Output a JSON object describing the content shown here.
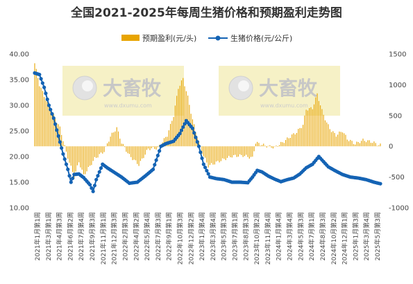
{
  "title": "全国2021-2025年每周生猪价格和预期盈利走势图",
  "watermark": {
    "brand": "大畜牧",
    "url": "www.dxumu.com"
  },
  "colors": {
    "bar": "#e8a400",
    "line": "#1463b4",
    "watermark_bg": "#f6f1c6"
  },
  "chart_data": {
    "type": "bar+line",
    "title": "全国2021-2025年每周生猪价格和预期盈利走势图",
    "legend": [
      "预期盈利(元/头)",
      "生猪价格(元/公斤)"
    ],
    "legend_position": "top-right",
    "y_left": {
      "min": 10,
      "max": 40,
      "ticks": [
        "10.00",
        "15.00",
        "20.00",
        "25.00",
        "30.00",
        "35.00",
        "40.00"
      ]
    },
    "y_right": {
      "min": -1000,
      "max": 1500,
      "ticks": [
        "-1000",
        "-500",
        "0",
        "500",
        "1000",
        "1500"
      ]
    },
    "x_labels": [
      "2021年1月第1周",
      "2021年3月第1周",
      "2021年4月第3周",
      "2021年6月第2周",
      "2021年7月第4周",
      "2021年9月第3周",
      "2021年11月第1周",
      "2021年12月第3周",
      "2022年2月第3周",
      "2022年4月第2周",
      "2022年5月第4周",
      "2022年7月第3周",
      "2022年9月第1周",
      "2022年10月第3周",
      "2022年12月第2周",
      "2023年1月第4周",
      "2023年3月第4周",
      "2023年5月第3周",
      "2023年7月第1周",
      "2023年8月第3周",
      "2023年10月第2周",
      "2023年11月第4周",
      "2024年1月第4周",
      "2024年3月第4周",
      "2024年5月第3周",
      "2024年7月第1周",
      "2024年8月第3周",
      "2024年10月第2周",
      "2024年12月第1周",
      "2025年1月第3周",
      "2025年3月第4周",
      "2025年5月第3周"
    ],
    "series": [
      {
        "name": "预期盈利(元/头)",
        "axis": "right",
        "type": "bar",
        "anchors": [
          [
            0,
            1350
          ],
          [
            3,
            1000
          ],
          [
            8,
            700
          ],
          [
            12,
            500
          ],
          [
            16,
            300
          ],
          [
            20,
            -100
          ],
          [
            25,
            -500
          ],
          [
            28,
            -250
          ],
          [
            31,
            -470
          ],
          [
            34,
            -360
          ],
          [
            38,
            -200
          ],
          [
            44,
            -80
          ],
          [
            48,
            160
          ],
          [
            52,
            300
          ],
          [
            55,
            60
          ],
          [
            60,
            -150
          ],
          [
            66,
            -300
          ],
          [
            72,
            -40
          ],
          [
            78,
            -30
          ],
          [
            84,
            180
          ],
          [
            88,
            500
          ],
          [
            91,
            950
          ],
          [
            94,
            1100
          ],
          [
            97,
            800
          ],
          [
            100,
            430
          ],
          [
            103,
            150
          ],
          [
            106,
            -100
          ],
          [
            110,
            -320
          ],
          [
            118,
            -230
          ],
          [
            125,
            -160
          ],
          [
            132,
            -150
          ],
          [
            138,
            -190
          ],
          [
            140,
            60
          ],
          [
            146,
            10
          ],
          [
            152,
            -20
          ],
          [
            158,
            80
          ],
          [
            162,
            160
          ],
          [
            166,
            230
          ],
          [
            170,
            350
          ],
          [
            172,
            600
          ],
          [
            176,
            620
          ],
          [
            179,
            850
          ],
          [
            182,
            580
          ],
          [
            185,
            380
          ],
          [
            188,
            250
          ],
          [
            191,
            180
          ],
          [
            195,
            250
          ],
          [
            198,
            120
          ],
          [
            203,
            40
          ],
          [
            208,
            100
          ],
          [
            214,
            70
          ],
          [
            218,
            20
          ]
        ]
      },
      {
        "name": "生猪价格(元/公斤)",
        "axis": "left",
        "type": "line",
        "anchors": [
          [
            0,
            36.3
          ],
          [
            3,
            36.0
          ],
          [
            6,
            33.5
          ],
          [
            9,
            30.0
          ],
          [
            12,
            27.5
          ],
          [
            15,
            24.0
          ],
          [
            18,
            20.5
          ],
          [
            21,
            17.5
          ],
          [
            23,
            15.0
          ],
          [
            25,
            16.5
          ],
          [
            28,
            16.6
          ],
          [
            31,
            15.9
          ],
          [
            35,
            14.5
          ],
          [
            37,
            13.2
          ],
          [
            39,
            15.5
          ],
          [
            43,
            18.5
          ],
          [
            46,
            17.8
          ],
          [
            50,
            17.0
          ],
          [
            55,
            16.0
          ],
          [
            60,
            14.8
          ],
          [
            65,
            15.0
          ],
          [
            70,
            16.2
          ],
          [
            75,
            17.5
          ],
          [
            80,
            22.0
          ],
          [
            83,
            22.5
          ],
          [
            88,
            23.0
          ],
          [
            92,
            24.5
          ],
          [
            96,
            27.0
          ],
          [
            100,
            25.5
          ],
          [
            104,
            22.0
          ],
          [
            107,
            18.5
          ],
          [
            111,
            16.0
          ],
          [
            115,
            15.7
          ],
          [
            120,
            15.5
          ],
          [
            125,
            15.0
          ],
          [
            130,
            15.0
          ],
          [
            135,
            14.9
          ],
          [
            138,
            16.0
          ],
          [
            141,
            17.3
          ],
          [
            144,
            17.0
          ],
          [
            148,
            16.2
          ],
          [
            152,
            15.6
          ],
          [
            156,
            15.1
          ],
          [
            160,
            15.5
          ],
          [
            164,
            15.8
          ],
          [
            168,
            16.6
          ],
          [
            172,
            17.8
          ],
          [
            176,
            18.5
          ],
          [
            180,
            20.0
          ],
          [
            183,
            19.0
          ],
          [
            186,
            18.0
          ],
          [
            190,
            17.3
          ],
          [
            195,
            16.5
          ],
          [
            200,
            16.0
          ],
          [
            205,
            15.8
          ],
          [
            210,
            15.5
          ],
          [
            215,
            15.0
          ],
          [
            219,
            14.7
          ]
        ]
      }
    ]
  }
}
